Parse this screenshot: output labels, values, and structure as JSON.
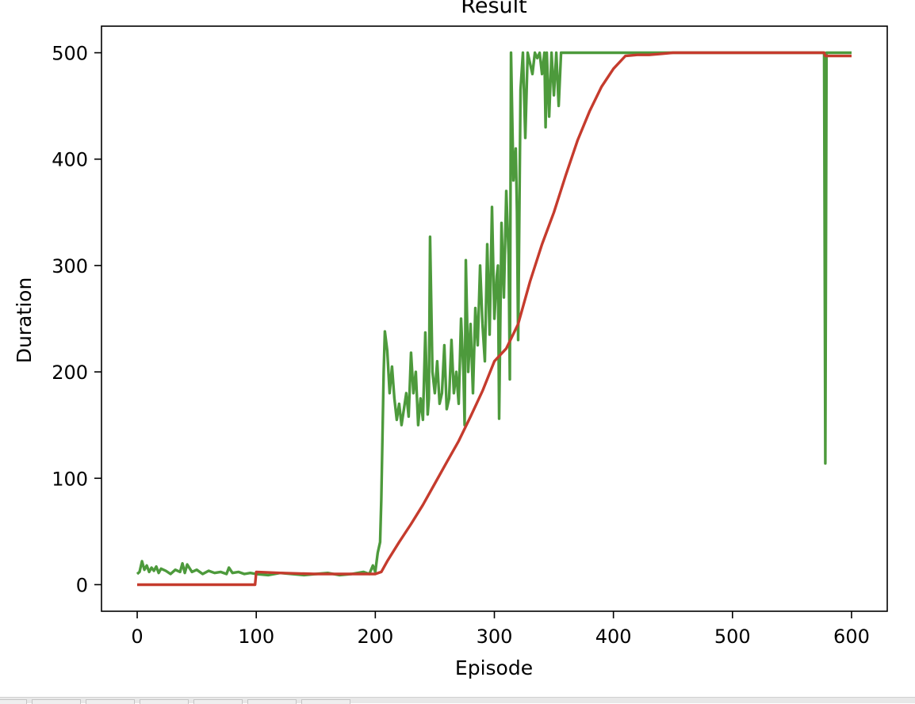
{
  "chart_data": {
    "type": "line",
    "title": "Result",
    "xlabel": "Episode",
    "ylabel": "Duration",
    "xlim": [
      -30,
      630
    ],
    "ylim": [
      -25,
      525
    ],
    "xticks": [
      0,
      100,
      200,
      300,
      400,
      500,
      600
    ],
    "yticks": [
      0,
      100,
      200,
      300,
      400,
      500
    ],
    "grid": false,
    "series": [
      {
        "color": "#4d9a3c",
        "x": [
          0,
          2,
          4,
          6,
          8,
          10,
          12,
          14,
          16,
          18,
          20,
          24,
          28,
          32,
          36,
          38,
          40,
          42,
          46,
          50,
          55,
          60,
          65,
          70,
          75,
          77,
          80,
          85,
          90,
          95,
          100,
          110,
          120,
          130,
          140,
          150,
          160,
          170,
          180,
          190,
          195,
          198,
          200,
          202,
          204,
          205,
          206,
          207,
          208,
          210,
          212,
          214,
          216,
          218,
          220,
          222,
          224,
          226,
          228,
          230,
          232,
          234,
          236,
          238,
          240,
          242,
          244,
          245,
          246,
          248,
          250,
          252,
          254,
          256,
          258,
          260,
          262,
          264,
          266,
          268,
          270,
          272,
          274,
          275,
          276,
          278,
          280,
          282,
          284,
          286,
          288,
          290,
          292,
          294,
          296,
          298,
          300,
          302,
          303,
          304,
          306,
          308,
          310,
          312,
          313,
          314,
          316,
          318,
          319,
          320,
          322,
          324,
          326,
          328,
          330,
          332,
          334,
          336,
          338,
          340,
          342,
          343,
          344,
          346,
          348,
          350,
          352,
          354,
          356,
          358,
          360,
          400,
          450,
          500,
          550,
          576,
          577,
          578,
          579,
          580,
          582,
          590,
          600
        ],
        "y": [
          10,
          12,
          22,
          14,
          18,
          12,
          16,
          13,
          17,
          11,
          15,
          13,
          10,
          14,
          12,
          20,
          11,
          19,
          12,
          14,
          10,
          13,
          11,
          12,
          10,
          16,
          11,
          12,
          10,
          11,
          10,
          9,
          11,
          10,
          9,
          10,
          11,
          9,
          10,
          12,
          10,
          18,
          12,
          30,
          40,
          80,
          140,
          200,
          238,
          220,
          180,
          205,
          175,
          155,
          170,
          150,
          165,
          180,
          158,
          218,
          180,
          200,
          150,
          175,
          155,
          237,
          160,
          175,
          327,
          200,
          180,
          210,
          170,
          180,
          225,
          165,
          175,
          230,
          180,
          200,
          170,
          250,
          200,
          150,
          305,
          200,
          245,
          180,
          260,
          225,
          300,
          245,
          210,
          320,
          235,
          355,
          250,
          290,
          300,
          156,
          340,
          270,
          370,
          310,
          193,
          500,
          380,
          410,
          350,
          230,
          465,
          500,
          420,
          500,
          490,
          480,
          500,
          495,
          500,
          480,
          500,
          430,
          500,
          440,
          500,
          460,
          500,
          450,
          500,
          500,
          500,
          500,
          500,
          500,
          500,
          500,
          500,
          114,
          500,
          500,
          500,
          500,
          500
        ]
      },
      {
        "color": "#c53b2d",
        "x": [
          0,
          99,
          100,
          120,
          150,
          180,
          200,
          205,
          210,
          220,
          230,
          240,
          250,
          260,
          270,
          280,
          290,
          300,
          310,
          320,
          330,
          340,
          350,
          360,
          370,
          380,
          390,
          400,
          410,
          420,
          430,
          440,
          450,
          460,
          500,
          550,
          576,
          577,
          578,
          600
        ],
        "y": [
          0,
          0,
          12,
          11,
          10,
          10,
          10,
          12,
          22,
          40,
          57,
          75,
          95,
          115,
          135,
          158,
          182,
          210,
          222,
          245,
          285,
          320,
          350,
          385,
          418,
          445,
          468,
          485,
          497,
          498,
          498,
          499,
          500,
          500,
          500,
          500,
          500,
          500,
          497,
          497
        ]
      }
    ]
  }
}
